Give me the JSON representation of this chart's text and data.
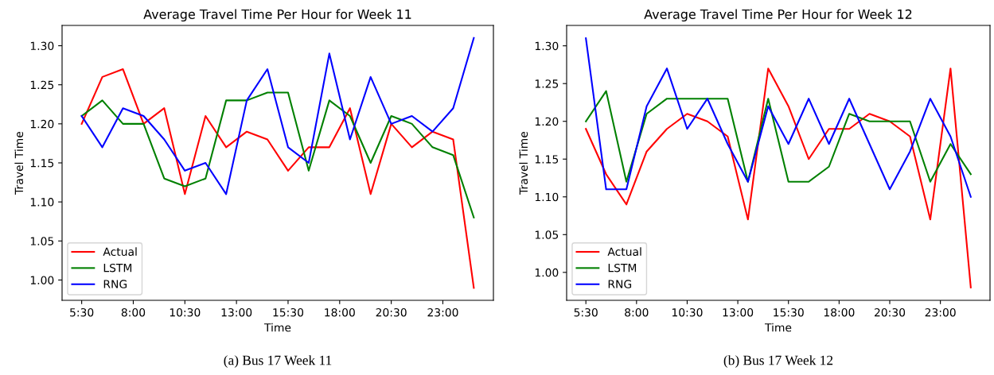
{
  "chart_data": [
    {
      "type": "line",
      "title": "Average Travel Time Per Hour for Week 11",
      "xlabel": "Time",
      "ylabel": "Travel Time",
      "x": [
        5.5,
        6.5,
        7.5,
        8.5,
        9.5,
        10.5,
        11.5,
        12.5,
        13.5,
        14.5,
        15.5,
        16.5,
        17.5,
        18.5,
        19.5,
        20.5,
        21.5,
        22.5,
        23.5,
        24.5
      ],
      "series": [
        {
          "name": "Actual",
          "color": "#ff0000",
          "values": [
            1.2,
            1.26,
            1.27,
            1.2,
            1.22,
            1.11,
            1.21,
            1.17,
            1.19,
            1.18,
            1.14,
            1.17,
            1.17,
            1.22,
            1.11,
            1.2,
            1.17,
            1.19,
            1.18,
            0.99
          ]
        },
        {
          "name": "LSTM",
          "color": "#008000",
          "values": [
            1.21,
            1.23,
            1.2,
            1.2,
            1.13,
            1.12,
            1.13,
            1.23,
            1.23,
            1.24,
            1.24,
            1.14,
            1.23,
            1.21,
            1.15,
            1.21,
            1.2,
            1.17,
            1.16,
            1.08
          ]
        },
        {
          "name": "RNG",
          "color": "#0000ff",
          "values": [
            1.21,
            1.17,
            1.22,
            1.21,
            1.18,
            1.14,
            1.15,
            1.11,
            1.23,
            1.27,
            1.17,
            1.15,
            1.29,
            1.18,
            1.26,
            1.2,
            1.21,
            1.19,
            1.22,
            1.31
          ]
        }
      ],
      "xlim": [
        4.55,
        25.45
      ],
      "ylim": [
        0.974,
        1.326
      ],
      "xticks": [
        {
          "value": 5.5,
          "label": "5:30"
        },
        {
          "value": 8,
          "label": "8:00"
        },
        {
          "value": 10.5,
          "label": "10:30"
        },
        {
          "value": 13,
          "label": "13:00"
        },
        {
          "value": 15.5,
          "label": "15:30"
        },
        {
          "value": 18,
          "label": "18:00"
        },
        {
          "value": 20.5,
          "label": "20:30"
        },
        {
          "value": 23,
          "label": "23:00"
        }
      ],
      "yticks": [
        {
          "value": 1.0,
          "label": "1.00"
        },
        {
          "value": 1.05,
          "label": "1.05"
        },
        {
          "value": 1.1,
          "label": "1.10"
        },
        {
          "value": 1.15,
          "label": "1.15"
        },
        {
          "value": 1.2,
          "label": "1.20"
        },
        {
          "value": 1.25,
          "label": "1.25"
        },
        {
          "value": 1.3,
          "label": "1.30"
        }
      ],
      "legend": "bottom left",
      "grid": false,
      "annotations": [
        "(a) Bus 17 Week 11"
      ]
    },
    {
      "type": "line",
      "title": "Average Travel Time Per Hour for Week 12",
      "xlabel": "Time",
      "ylabel": "Travel Time",
      "x": [
        5.5,
        6.5,
        7.5,
        8.5,
        9.5,
        10.5,
        11.5,
        12.5,
        13.5,
        14.5,
        15.5,
        16.5,
        17.5,
        18.5,
        19.5,
        20.5,
        21.5,
        22.5,
        23.5,
        24.5
      ],
      "series": [
        {
          "name": "Actual",
          "color": "#ff0000",
          "values": [
            1.19,
            1.13,
            1.09,
            1.16,
            1.19,
            1.21,
            1.2,
            1.18,
            1.07,
            1.27,
            1.22,
            1.15,
            1.19,
            1.19,
            1.21,
            1.2,
            1.18,
            1.07,
            1.27,
            0.98
          ]
        },
        {
          "name": "LSTM",
          "color": "#008000",
          "values": [
            1.2,
            1.24,
            1.12,
            1.21,
            1.23,
            1.23,
            1.23,
            1.23,
            1.12,
            1.23,
            1.12,
            1.12,
            1.14,
            1.21,
            1.2,
            1.2,
            1.2,
            1.12,
            1.17,
            1.13
          ]
        },
        {
          "name": "RNG",
          "color": "#0000ff",
          "values": [
            1.31,
            1.11,
            1.11,
            1.22,
            1.27,
            1.19,
            1.23,
            1.17,
            1.12,
            1.22,
            1.17,
            1.23,
            1.17,
            1.23,
            1.17,
            1.11,
            1.16,
            1.23,
            1.18,
            1.1
          ]
        }
      ],
      "xlim": [
        4.55,
        25.45
      ],
      "ylim": [
        0.963,
        1.327
      ],
      "xticks": [
        {
          "value": 5.5,
          "label": "5:30"
        },
        {
          "value": 8,
          "label": "8:00"
        },
        {
          "value": 10.5,
          "label": "10:30"
        },
        {
          "value": 13,
          "label": "13:00"
        },
        {
          "value": 15.5,
          "label": "15:30"
        },
        {
          "value": 18,
          "label": "18:00"
        },
        {
          "value": 20.5,
          "label": "20:30"
        },
        {
          "value": 23,
          "label": "23:00"
        }
      ],
      "yticks": [
        {
          "value": 1.0,
          "label": "1.00"
        },
        {
          "value": 1.05,
          "label": "1.05"
        },
        {
          "value": 1.1,
          "label": "1.10"
        },
        {
          "value": 1.15,
          "label": "1.15"
        },
        {
          "value": 1.2,
          "label": "1.20"
        },
        {
          "value": 1.25,
          "label": "1.25"
        },
        {
          "value": 1.3,
          "label": "1.30"
        }
      ],
      "legend": "bottom left",
      "grid": false,
      "annotations": [
        "(b) Bus 17 Week 12"
      ]
    }
  ]
}
